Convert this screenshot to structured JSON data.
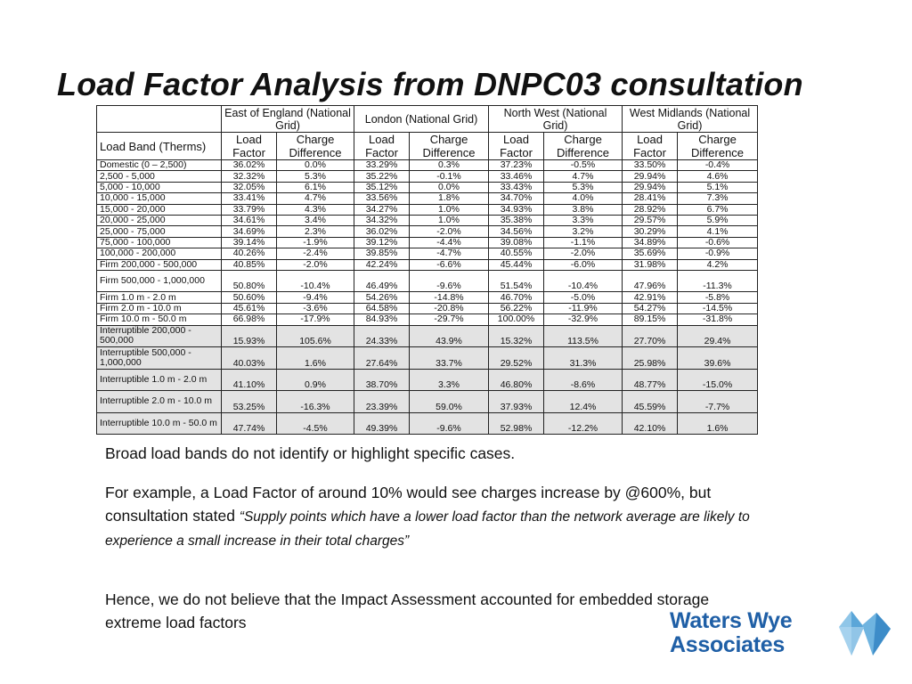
{
  "title": "Load Factor Analysis from DNPC03 consultation",
  "table": {
    "groups": [
      "East of England (National Grid)",
      "London (National Grid)",
      "North West (National Grid)",
      "West Midlands (National Grid)"
    ],
    "band_header": "Load Band (Therms)",
    "col_lf": "Load Factor",
    "col_cd": "Charge Difference",
    "rows": [
      [
        "Domestic (0 – 2,500)",
        "36.02%",
        "0.0%",
        "33.29%",
        "0.3%",
        "37.23%",
        "-0.5%",
        "33.50%",
        "-0.4%"
      ],
      [
        "2,500 - 5,000",
        "32.32%",
        "5.3%",
        "35.22%",
        "-0.1%",
        "33.46%",
        "4.7%",
        "29.94%",
        "4.6%"
      ],
      [
        "5,000 - 10,000",
        "32.05%",
        "6.1%",
        "35.12%",
        "0.0%",
        "33.43%",
        "5.3%",
        "29.94%",
        "5.1%"
      ],
      [
        "10,000 - 15,000",
        "33.41%",
        "4.7%",
        "33.56%",
        "1.8%",
        "34.70%",
        "4.0%",
        "28.41%",
        "7.3%"
      ],
      [
        "15,000 - 20,000",
        "33.79%",
        "4.3%",
        "34.27%",
        "1.0%",
        "34.93%",
        "3.8%",
        "28.92%",
        "6.7%"
      ],
      [
        "20,000 - 25,000",
        "34.61%",
        "3.4%",
        "34.32%",
        "1.0%",
        "35.38%",
        "3.3%",
        "29.57%",
        "5.9%"
      ],
      [
        "25,000 - 75,000",
        "34.69%",
        "2.3%",
        "36.02%",
        "-2.0%",
        "34.56%",
        "3.2%",
        "30.29%",
        "4.1%"
      ],
      [
        "75,000 - 100,000",
        "39.14%",
        "-1.9%",
        "39.12%",
        "-4.4%",
        "39.08%",
        "-1.1%",
        "34.89%",
        "-0.6%"
      ],
      [
        "100,000 - 200,000",
        "40.26%",
        "-2.4%",
        "39.85%",
        "-4.7%",
        "40.55%",
        "-2.0%",
        "35.69%",
        "-0.9%"
      ],
      [
        "Firm 200,000 - 500,000",
        "40.85%",
        "-2.0%",
        "42.24%",
        "-6.6%",
        "45.44%",
        "-6.0%",
        "31.98%",
        "4.2%"
      ],
      [
        "Firm 500,000 - 1,000,000",
        "50.80%",
        "-10.4%",
        "46.49%",
        "-9.6%",
        "51.54%",
        "-10.4%",
        "47.96%",
        "-11.3%"
      ],
      [
        "Firm 1.0 m - 2.0 m",
        "50.60%",
        "-9.4%",
        "54.26%",
        "-14.8%",
        "46.70%",
        "-5.0%",
        "42.91%",
        "-5.8%"
      ],
      [
        "Firm 2.0 m - 10.0 m",
        "45.61%",
        "-3.6%",
        "64.58%",
        "-20.8%",
        "56.22%",
        "-11.9%",
        "54.27%",
        "-14.5%"
      ],
      [
        "Firm 10.0 m - 50.0 m",
        "66.98%",
        "-17.9%",
        "84.93%",
        "-29.7%",
        "100.00%",
        "-32.9%",
        "89.15%",
        "-31.8%"
      ],
      [
        "Interruptible 200,000 - 500,000",
        "15.93%",
        "105.6%",
        "24.33%",
        "43.9%",
        "15.32%",
        "113.5%",
        "27.70%",
        "29.4%"
      ],
      [
        "Interruptible 500,000 - 1,000,000",
        "40.03%",
        "1.6%",
        "27.64%",
        "33.7%",
        "29.52%",
        "31.3%",
        "25.98%",
        "39.6%"
      ],
      [
        "Interruptible 1.0 m - 2.0 m",
        "41.10%",
        "0.9%",
        "38.70%",
        "3.3%",
        "46.80%",
        "-8.6%",
        "48.77%",
        "-15.0%"
      ],
      [
        "Interruptible 2.0 m - 10.0 m",
        "53.25%",
        "-16.3%",
        "23.39%",
        "59.0%",
        "37.93%",
        "12.4%",
        "45.59%",
        "-7.7%"
      ],
      [
        "Interruptible 10.0 m - 50.0 m",
        "47.74%",
        "-4.5%",
        "49.39%",
        "-9.6%",
        "52.98%",
        "-12.2%",
        "42.10%",
        "1.6%"
      ]
    ],
    "shaded_from_row": 14
  },
  "paragraphs": {
    "p1": "Broad load bands do not identify or highlight specific cases.",
    "p2_lead": "For example, a Load Factor of around 10% would see charges increase by @600%, but consultation stated ",
    "p2_quote": "“Supply points which have a lower load factor than the network average are likely to experience a small increase in their total charges”",
    "p3": "Hence, we do not believe that the Impact Assessment accounted for embedded storage extreme load factors"
  },
  "logo": {
    "line1": "Waters Wye",
    "line2": "Associates",
    "color": "#1f5fa6",
    "icon": "blue-crystal-icon"
  }
}
